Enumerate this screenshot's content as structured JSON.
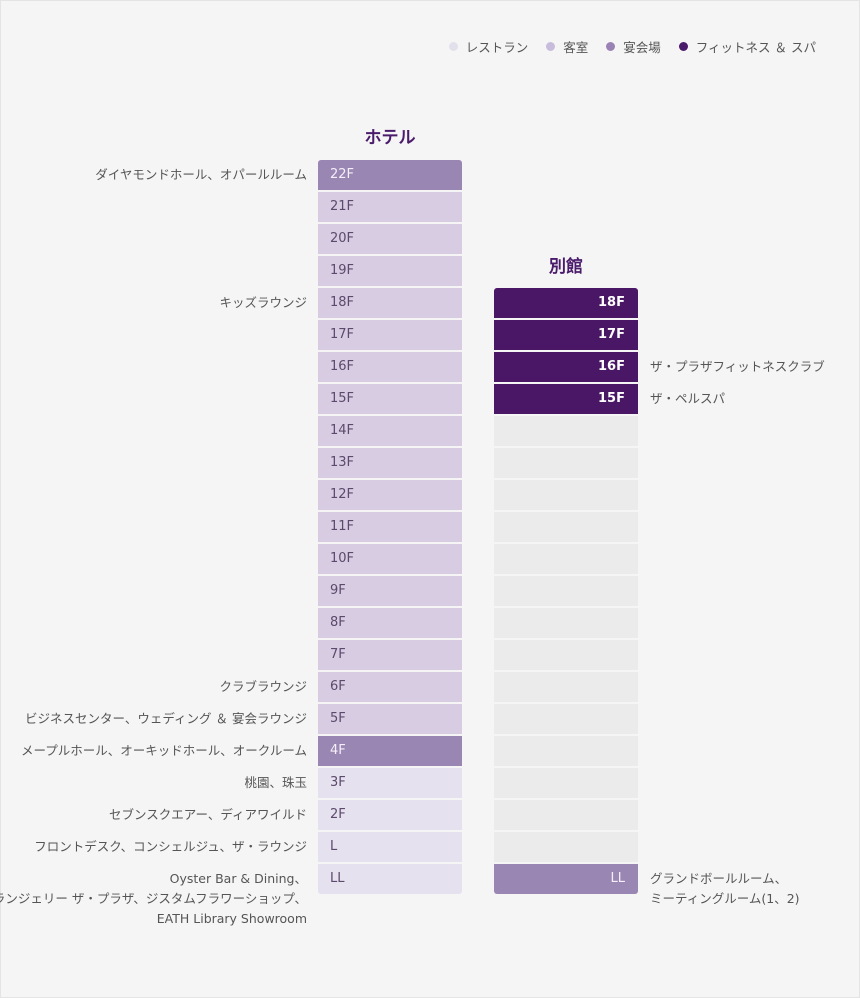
{
  "legend": [
    {
      "label": "レストラン",
      "color": "#e3e0ec"
    },
    {
      "label": "客室",
      "color": "#c8bcdd"
    },
    {
      "label": "宴会場",
      "color": "#9a83b4"
    },
    {
      "label": "フィットネス ＆ スパ",
      "color": "#4a1b6b"
    }
  ],
  "colors": {
    "restaurant": "#e6e1ef",
    "room": "#d8cce3",
    "banquet": "#9a86b3",
    "fitness": "#4a1767",
    "none": "#ebebeb"
  },
  "hotel": {
    "title": "ホテル",
    "floors": [
      {
        "name": "22F",
        "type": "banquet"
      },
      {
        "name": "21F",
        "type": "room"
      },
      {
        "name": "20F",
        "type": "room"
      },
      {
        "name": "19F",
        "type": "room"
      },
      {
        "name": "18F",
        "type": "room"
      },
      {
        "name": "17F",
        "type": "room"
      },
      {
        "name": "16F",
        "type": "room"
      },
      {
        "name": "15F",
        "type": "room"
      },
      {
        "name": "14F",
        "type": "room"
      },
      {
        "name": "13F",
        "type": "room"
      },
      {
        "name": "12F",
        "type": "room"
      },
      {
        "name": "11F",
        "type": "room"
      },
      {
        "name": "10F",
        "type": "room"
      },
      {
        "name": "9F",
        "type": "room"
      },
      {
        "name": "8F",
        "type": "room"
      },
      {
        "name": "7F",
        "type": "room"
      },
      {
        "name": "6F",
        "type": "room"
      },
      {
        "name": "5F",
        "type": "room"
      },
      {
        "name": "4F",
        "type": "banquet"
      },
      {
        "name": "3F",
        "type": "restaurant"
      },
      {
        "name": "2F",
        "type": "restaurant"
      },
      {
        "name": "L",
        "type": "restaurant"
      },
      {
        "name": "LL",
        "type": "restaurant"
      }
    ],
    "labels": [
      {
        "floor": "22F",
        "lines": [
          "ダイヤモンドホール、オパールルーム"
        ]
      },
      {
        "floor": "18F",
        "lines": [
          "キッズラウンジ"
        ]
      },
      {
        "floor": "6F",
        "lines": [
          "クラブラウンジ"
        ]
      },
      {
        "floor": "5F",
        "lines": [
          "ビジネスセンター、ウェディング ＆ 宴会ラウンジ"
        ]
      },
      {
        "floor": "4F",
        "lines": [
          "メープルホール、オーキッドホール、オークルーム"
        ]
      },
      {
        "floor": "3F",
        "lines": [
          "桃園、珠玉"
        ]
      },
      {
        "floor": "2F",
        "lines": [
          "セブンスクエアー、ディアワイルド"
        ]
      },
      {
        "floor": "L",
        "lines": [
          "フロントデスク、コンシェルジュ、ザ・ラウンジ"
        ]
      },
      {
        "floor": "LL",
        "lines": [
          "Oyster Bar & Dining、",
          "ブーランジェリー ザ・プラザ、ジスタムフラワーショップ、",
          "EATH Library Showroom"
        ]
      }
    ]
  },
  "annex": {
    "title": "別館",
    "floors": [
      {
        "name": "18F",
        "type": "fitness"
      },
      {
        "name": "17F",
        "type": "fitness"
      },
      {
        "name": "16F",
        "type": "fitness"
      },
      {
        "name": "15F",
        "type": "fitness"
      },
      {
        "name": "",
        "type": "none"
      },
      {
        "name": "",
        "type": "none"
      },
      {
        "name": "",
        "type": "none"
      },
      {
        "name": "",
        "type": "none"
      },
      {
        "name": "",
        "type": "none"
      },
      {
        "name": "",
        "type": "none"
      },
      {
        "name": "",
        "type": "none"
      },
      {
        "name": "",
        "type": "none"
      },
      {
        "name": "",
        "type": "none"
      },
      {
        "name": "",
        "type": "none"
      },
      {
        "name": "",
        "type": "none"
      },
      {
        "name": "",
        "type": "none"
      },
      {
        "name": "",
        "type": "none"
      },
      {
        "name": "",
        "type": "none"
      },
      {
        "name": "LL",
        "type": "banquet"
      }
    ],
    "labels": [
      {
        "floor": "16F",
        "lines": [
          "ザ・プラザフィットネスクラブ"
        ]
      },
      {
        "floor": "15F",
        "lines": [
          "ザ・ペルスパ"
        ]
      },
      {
        "floor": "LL",
        "lines": [
          "グランドボールルーム、",
          "ミーティングルーム(1、2)"
        ]
      }
    ]
  }
}
